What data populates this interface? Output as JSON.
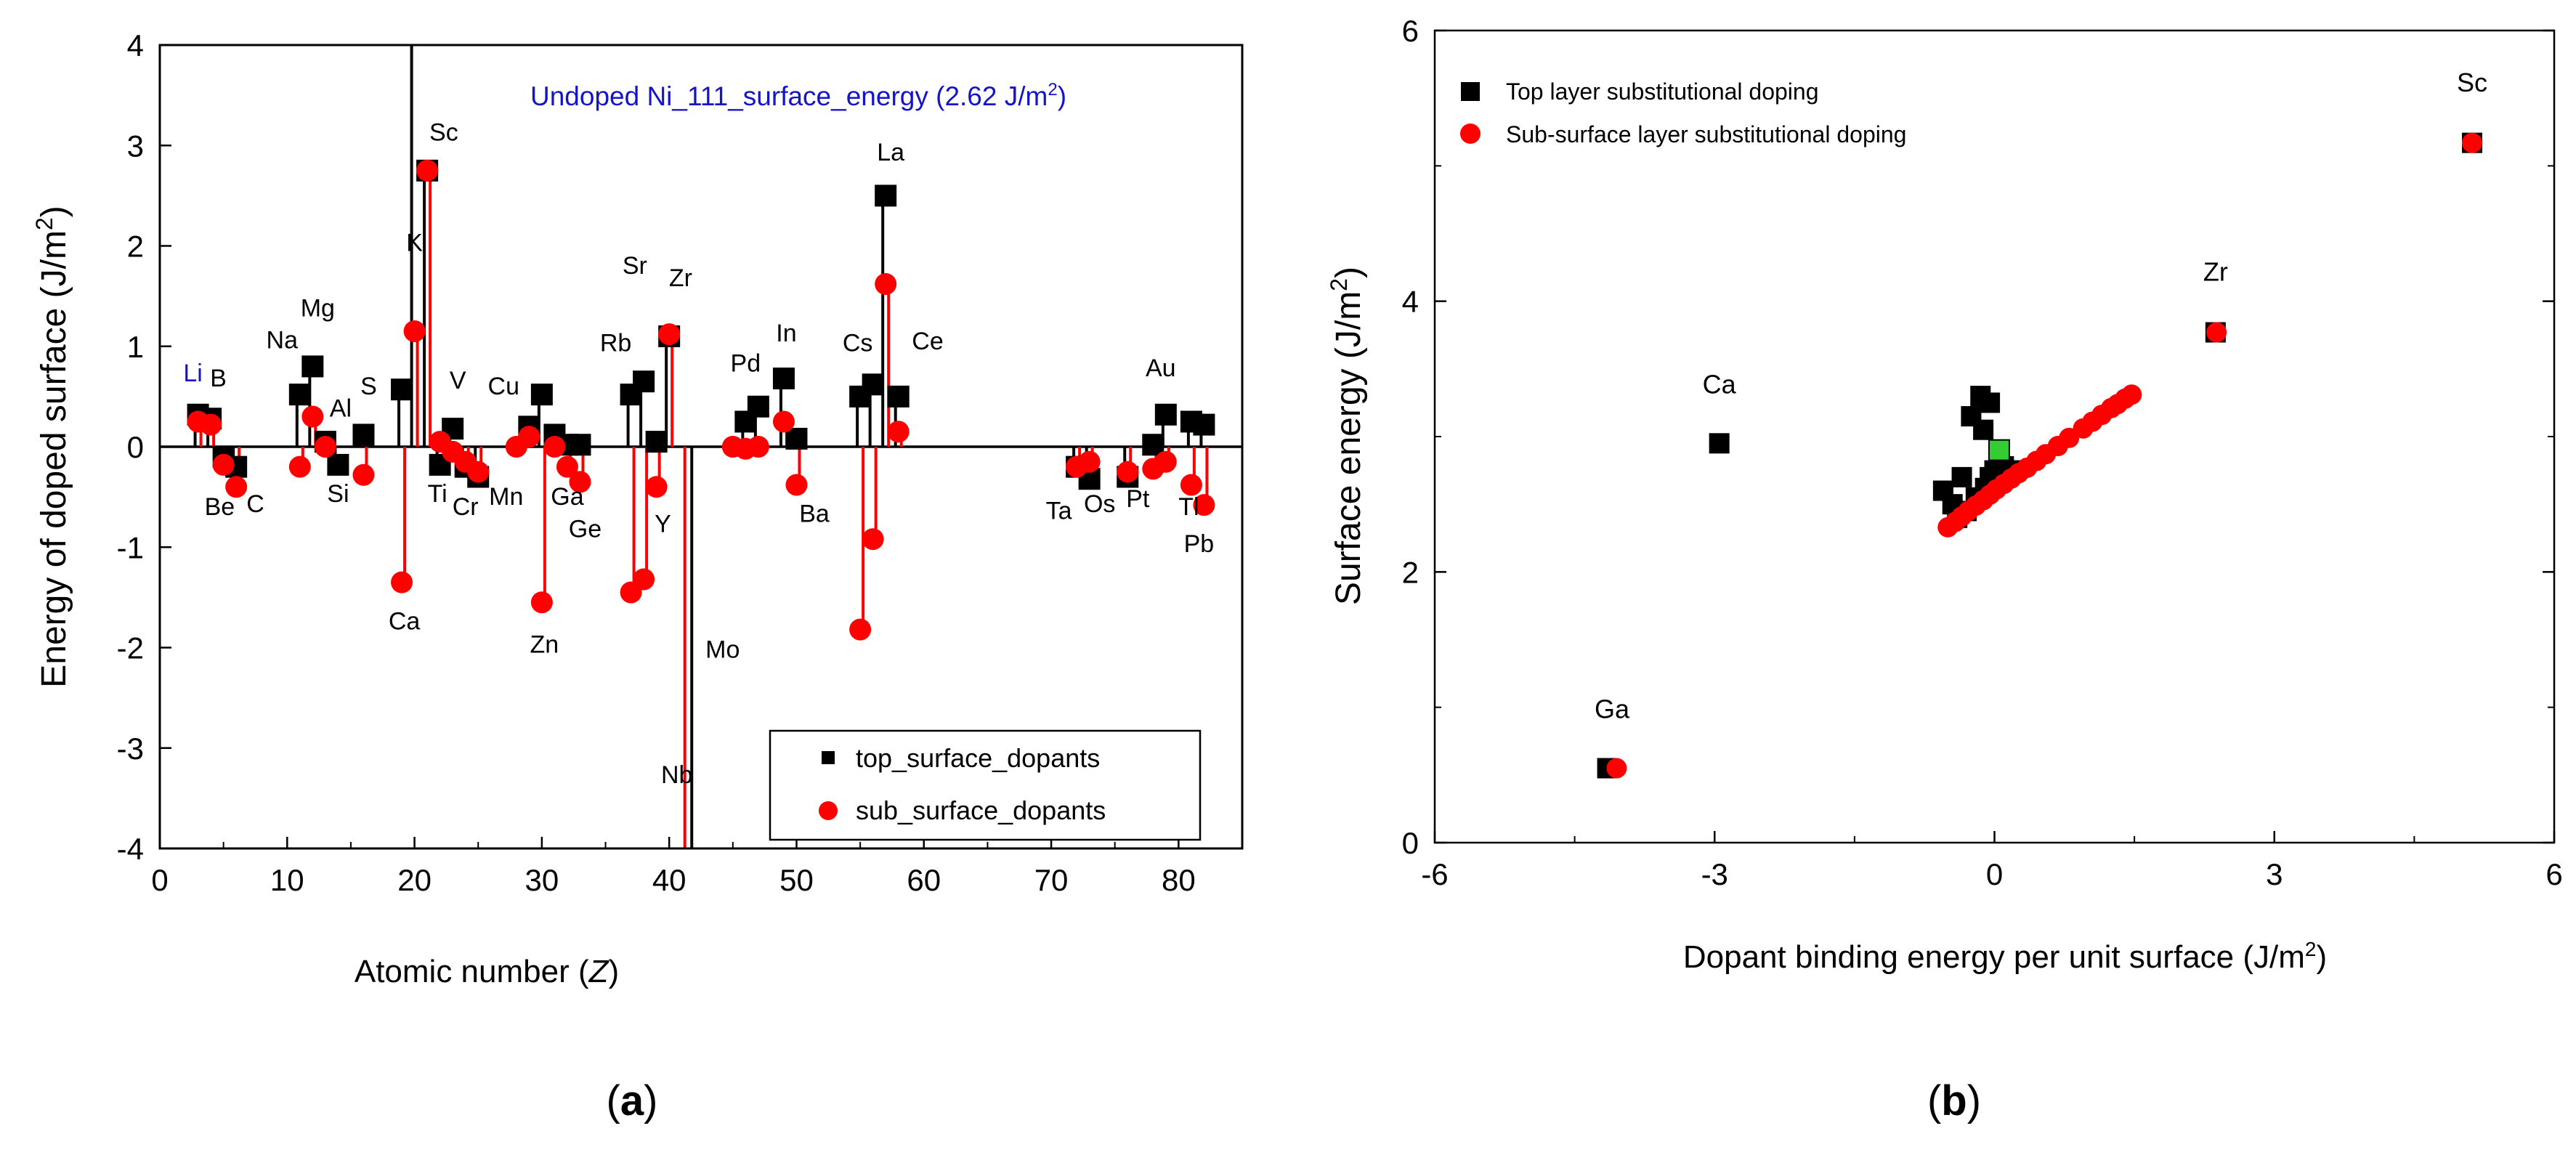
{
  "colors": {
    "top": "#000000",
    "sub": "#ff0000",
    "green": "#33cc33",
    "blue": "#1414c8"
  },
  "panels": {
    "a": {
      "caption": "a"
    },
    "b": {
      "caption": "b"
    }
  },
  "chart_data": [
    {
      "type": "scatter",
      "title": "",
      "xlabel": "Atomic number (",
      "xlabel_var": "Z",
      "xlabel_end": ")",
      "ylabel": "Energy of doped surface  (J/m",
      "ylabel_sup": "2",
      "ylabel_end": ")",
      "xlim": [
        0,
        85
      ],
      "ylim": [
        -4,
        4
      ],
      "xticks": [
        0,
        10,
        20,
        30,
        40,
        50,
        60,
        70,
        80
      ],
      "yticks": [
        -4,
        -3,
        -2,
        -1,
        0,
        1,
        2,
        3,
        4
      ],
      "annotation": {
        "text": "Undoped Ni_111_surface_energy (2.62 J/m",
        "sup": "2",
        "end": ")"
      },
      "legend": {
        "position": "bottom-right",
        "entries": [
          "top_surface_dopants",
          "sub_surface_dopants"
        ]
      },
      "series": [
        {
          "name": "top_surface_dopants",
          "marker": "square",
          "points": [
            [
              3,
              0.32
            ],
            [
              4,
              0.28
            ],
            [
              5,
              -0.1
            ],
            [
              6,
              -0.2
            ],
            [
              11,
              0.52
            ],
            [
              12,
              0.8
            ],
            [
              13,
              0.05
            ],
            [
              14,
              -0.18
            ],
            [
              16,
              0.12
            ],
            [
              19,
              0.57
            ],
            [
              20,
              4.0
            ],
            [
              21,
              2.75
            ],
            [
              22,
              -0.18
            ],
            [
              23,
              0.18
            ],
            [
              24,
              -0.2
            ],
            [
              25,
              -0.3
            ],
            [
              29,
              0.2
            ],
            [
              30,
              0.52
            ],
            [
              31,
              0.12
            ],
            [
              32,
              0.02
            ],
            [
              33,
              0.02
            ],
            [
              37,
              0.52
            ],
            [
              38,
              0.65
            ],
            [
              39,
              0.05
            ],
            [
              40,
              1.1
            ],
            [
              42,
              -4.0
            ],
            [
              46,
              0.25
            ],
            [
              47,
              0.4
            ],
            [
              49,
              0.68
            ],
            [
              50,
              0.08
            ],
            [
              55,
              0.5
            ],
            [
              56,
              0.62
            ],
            [
              57,
              2.5
            ],
            [
              58,
              0.5
            ],
            [
              72,
              -0.2
            ],
            [
              73,
              -0.32
            ],
            [
              76,
              -0.3
            ],
            [
              78,
              0.02
            ],
            [
              79,
              0.32
            ],
            [
              81,
              0.25
            ],
            [
              82,
              0.22
            ]
          ]
        },
        {
          "name": "sub_surface_dopants",
          "marker": "circle",
          "points": [
            [
              3,
              0.25
            ],
            [
              4,
              0.22
            ],
            [
              5,
              -0.18
            ],
            [
              6,
              -0.4
            ],
            [
              11,
              -0.2
            ],
            [
              12,
              0.3
            ],
            [
              13,
              0.0
            ],
            [
              16,
              -0.28
            ],
            [
              19,
              -1.35
            ],
            [
              20,
              1.15
            ],
            [
              21,
              2.75
            ],
            [
              22,
              0.05
            ],
            [
              23,
              -0.05
            ],
            [
              24,
              -0.15
            ],
            [
              25,
              -0.25
            ],
            [
              28,
              0.0
            ],
            [
              29,
              0.1
            ],
            [
              30,
              -1.55
            ],
            [
              31,
              0.0
            ],
            [
              32,
              -0.2
            ],
            [
              33,
              -0.35
            ],
            [
              37,
              -1.45
            ],
            [
              38,
              -1.32
            ],
            [
              39,
              -0.4
            ],
            [
              40,
              1.12
            ],
            [
              41,
              -4.0
            ],
            [
              45,
              0.0
            ],
            [
              46,
              -0.02
            ],
            [
              47,
              0.0
            ],
            [
              49,
              0.25
            ],
            [
              50,
              -0.38
            ],
            [
              55,
              -1.82
            ],
            [
              56,
              -0.92
            ],
            [
              57,
              1.62
            ],
            [
              58,
              0.15
            ],
            [
              72,
              -0.2
            ],
            [
              73,
              -0.15
            ],
            [
              76,
              -0.25
            ],
            [
              78,
              -0.22
            ],
            [
              79,
              -0.15
            ],
            [
              81,
              -0.38
            ],
            [
              82,
              -0.58
            ]
          ]
        }
      ],
      "point_labels": [
        {
          "text": "Li",
          "x": 2.6,
          "y": 0.65,
          "color": "#1414c8"
        },
        {
          "text": "B",
          "x": 4.6,
          "y": 0.6
        },
        {
          "text": "Be",
          "x": 4.7,
          "y": -0.68
        },
        {
          "text": "C",
          "x": 7.5,
          "y": -0.65
        },
        {
          "text": "Na",
          "x": 9.6,
          "y": 0.98
        },
        {
          "text": "Mg",
          "x": 12.4,
          "y": 1.3
        },
        {
          "text": "Al",
          "x": 14.2,
          "y": 0.3
        },
        {
          "text": "Si",
          "x": 14.0,
          "y": -0.55
        },
        {
          "text": "S",
          "x": 16.4,
          "y": 0.52
        },
        {
          "text": "K",
          "x": 20.0,
          "y": 1.95
        },
        {
          "text": "Sc",
          "x": 22.3,
          "y": 3.05
        },
        {
          "text": "Ca",
          "x": 19.2,
          "y": -1.82
        },
        {
          "text": "V",
          "x": 23.4,
          "y": 0.58
        },
        {
          "text": "Ti",
          "x": 21.8,
          "y": -0.55
        },
        {
          "text": "Cr",
          "x": 24.0,
          "y": -0.68
        },
        {
          "text": "Mn",
          "x": 27.2,
          "y": -0.58
        },
        {
          "text": "Cu",
          "x": 27.0,
          "y": 0.52
        },
        {
          "text": "Ga",
          "x": 32.0,
          "y": -0.58
        },
        {
          "text": "Ge",
          "x": 33.4,
          "y": -0.9
        },
        {
          "text": "Zn",
          "x": 30.2,
          "y": -2.05
        },
        {
          "text": "Rb",
          "x": 35.8,
          "y": 0.95
        },
        {
          "text": "Sr",
          "x": 37.3,
          "y": 1.72
        },
        {
          "text": "Zr",
          "x": 40.9,
          "y": 1.6
        },
        {
          "text": "Y",
          "x": 39.5,
          "y": -0.85
        },
        {
          "text": "Mo",
          "x": 44.2,
          "y": -2.1
        },
        {
          "text": "Nb",
          "x": 40.6,
          "y": -3.35
        },
        {
          "text": "Pd",
          "x": 46.0,
          "y": 0.75
        },
        {
          "text": "In",
          "x": 49.2,
          "y": 1.05
        },
        {
          "text": "Ba",
          "x": 51.4,
          "y": -0.75
        },
        {
          "text": "Cs",
          "x": 54.8,
          "y": 0.95
        },
        {
          "text": "La",
          "x": 57.4,
          "y": 2.85
        },
        {
          "text": "Ce",
          "x": 60.3,
          "y": 0.97
        },
        {
          "text": "Ta",
          "x": 70.6,
          "y": -0.72
        },
        {
          "text": "Os",
          "x": 73.8,
          "y": -0.65
        },
        {
          "text": "Pt",
          "x": 76.8,
          "y": -0.6
        },
        {
          "text": "Au",
          "x": 78.6,
          "y": 0.7
        },
        {
          "text": "Tl",
          "x": 80.8,
          "y": -0.68
        },
        {
          "text": "Pb",
          "x": 81.6,
          "y": -1.05
        }
      ]
    },
    {
      "type": "scatter",
      "title": "",
      "xlabel": "Dopant binding energy per unit surface (J/m",
      "xlabel_sup": "2",
      "xlabel_end": ")",
      "ylabel": "Surface energy  (J/m",
      "ylabel_sup": "2",
      "ylabel_end": ")",
      "xlim": [
        -6,
        6
      ],
      "ylim": [
        0,
        6
      ],
      "xticks": [
        -6,
        -3,
        0,
        3,
        6
      ],
      "yticks": [
        0,
        2,
        4,
        6
      ],
      "legend": {
        "position": "top-left",
        "entries": [
          "Top layer substitutional doping",
          "Sub-surface layer substitutional doping"
        ]
      },
      "series": [
        {
          "name": "Top layer substitutional doping",
          "marker": "square",
          "points": [
            [
              -4.15,
              0.55
            ],
            [
              -2.95,
              2.95
            ],
            [
              2.37,
              3.77
            ],
            [
              5.12,
              5.17
            ],
            [
              -0.15,
              3.3
            ],
            [
              -0.25,
              3.15
            ],
            [
              -0.05,
              3.25
            ],
            [
              -0.12,
              3.05
            ],
            [
              -0.35,
              2.7
            ],
            [
              -0.55,
              2.6
            ],
            [
              -0.45,
              2.5
            ],
            [
              -0.3,
              2.45
            ],
            [
              -0.2,
              2.55
            ],
            [
              -0.1,
              2.62
            ],
            [
              -0.05,
              2.7
            ],
            [
              0.0,
              2.75
            ],
            [
              0.1,
              2.78
            ],
            [
              -0.4,
              2.4
            ],
            [
              0.2,
              2.75
            ]
          ]
        },
        {
          "name": "Sub-surface layer substitutional doping",
          "marker": "circle",
          "points": [
            [
              -4.05,
              0.55
            ],
            [
              2.38,
              3.77
            ],
            [
              5.12,
              5.17
            ],
            [
              -0.5,
              2.33
            ],
            [
              -0.42,
              2.37
            ],
            [
              -0.35,
              2.41
            ],
            [
              -0.28,
              2.45
            ],
            [
              -0.2,
              2.49
            ],
            [
              -0.12,
              2.53
            ],
            [
              -0.05,
              2.57
            ],
            [
              0.02,
              2.61
            ],
            [
              0.1,
              2.65
            ],
            [
              0.18,
              2.69
            ],
            [
              0.26,
              2.73
            ],
            [
              0.35,
              2.77
            ],
            [
              0.45,
              2.82
            ],
            [
              0.55,
              2.87
            ],
            [
              0.68,
              2.93
            ],
            [
              0.8,
              2.99
            ],
            [
              0.95,
              3.06
            ],
            [
              1.05,
              3.11
            ],
            [
              1.15,
              3.16
            ],
            [
              1.25,
              3.21
            ],
            [
              1.32,
              3.24
            ],
            [
              1.4,
              3.28
            ],
            [
              1.47,
              3.31
            ]
          ]
        }
      ],
      "highlight_point": [
        0.05,
        2.9
      ],
      "point_labels": [
        {
          "text": "Sc",
          "x": 5.12,
          "y": 5.55
        },
        {
          "text": "Zr",
          "x": 2.37,
          "y": 4.15
        },
        {
          "text": "Ca",
          "x": -2.95,
          "y": 3.32
        },
        {
          "text": "Ga",
          "x": -4.1,
          "y": 0.92
        }
      ]
    }
  ]
}
